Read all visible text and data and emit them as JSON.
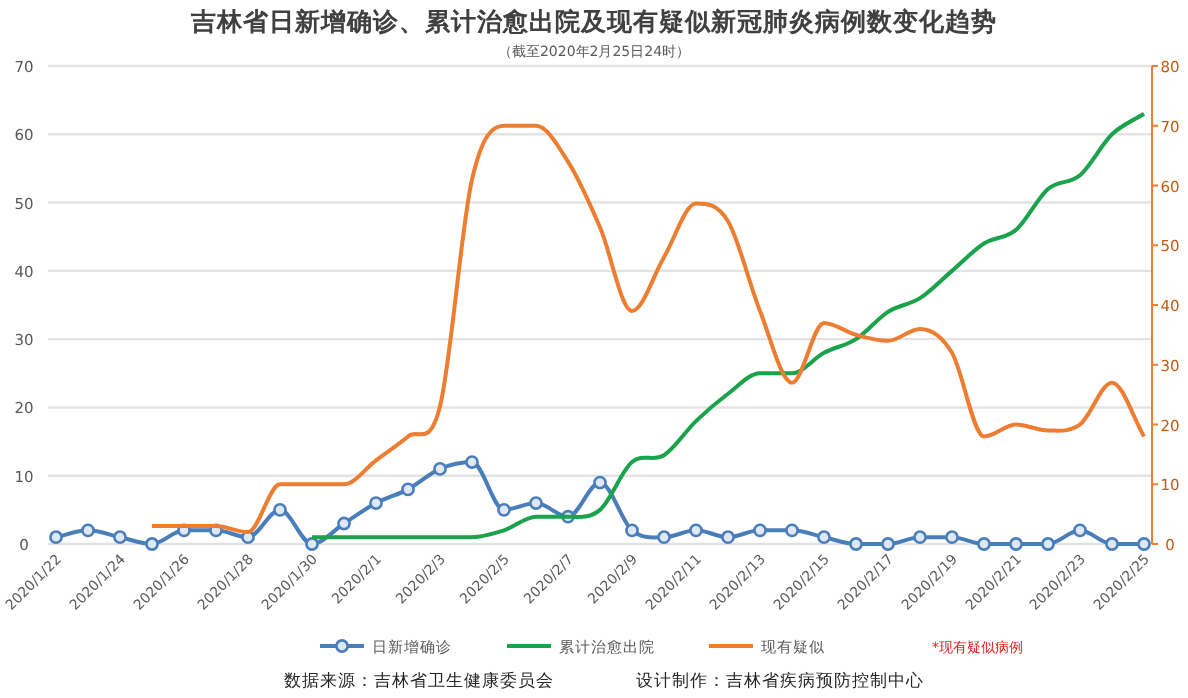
{
  "chart_data": {
    "type": "line",
    "title": "吉林省日新增确诊、累计治愈出院及现有疑似新冠肺炎病例数变化趋势",
    "subtitle": "（截至2020年2月25日24时）",
    "categories": [
      "2020/1/22",
      null,
      "2020/1/24",
      null,
      "2020/1/26",
      null,
      "2020/1/28",
      null,
      "2020/1/30",
      null,
      "2020/2/1",
      null,
      "2020/2/3",
      null,
      "2020/2/5",
      null,
      "2020/2/7",
      null,
      "2020/2/9",
      null,
      "2020/2/11",
      null,
      "2020/2/13",
      null,
      "2020/2/15",
      null,
      "2020/2/17",
      null,
      "2020/2/19",
      null,
      "2020/2/21",
      null,
      "2020/2/23",
      null,
      "2020/2/25"
    ],
    "series": [
      {
        "name": "日新增确诊",
        "color": "#4a7ebb",
        "marker": "circle",
        "values": [
          1,
          2,
          1,
          0,
          2,
          2,
          1,
          5,
          0,
          3,
          6,
          8,
          11,
          12,
          5,
          6,
          4,
          9,
          2,
          1,
          2,
          1,
          2,
          2,
          1,
          0,
          0,
          1,
          1,
          0,
          0,
          0,
          2,
          0,
          0
        ]
      },
      {
        "name": "累计治愈出院",
        "color": "#1aa34a",
        "marker": "none",
        "values": [
          null,
          null,
          null,
          null,
          null,
          null,
          null,
          null,
          1,
          1,
          1,
          1,
          1,
          1,
          2,
          4,
          4,
          5,
          12,
          13,
          18,
          22,
          25,
          25,
          28,
          30,
          34,
          36,
          40,
          44,
          46,
          52,
          54,
          60,
          63
        ]
      },
      {
        "name": "现有疑似",
        "color": "#ed7d31",
        "marker": "none",
        "axis": "y2",
        "values": [
          null,
          null,
          null,
          3,
          3,
          3,
          2,
          10,
          10,
          10,
          14,
          18,
          23,
          61,
          70,
          70,
          64,
          53,
          39,
          48,
          57,
          54,
          39,
          27,
          37,
          35,
          34,
          36,
          32,
          18,
          20,
          19,
          20,
          27,
          18
        ]
      }
    ],
    "ylim": [
      0,
      70
    ],
    "yticks": [
      0,
      10,
      20,
      30,
      40,
      50,
      60,
      70
    ],
    "y2lim": [
      0,
      80
    ],
    "y2ticks": [
      0,
      10,
      20,
      30,
      40,
      50,
      60,
      70,
      80
    ],
    "grid": "y",
    "legend": "bottom",
    "annotations": [
      "*现有疑似病例",
      "数据来源：吉林省卫生健康委员会",
      "设计制作：吉林省疾病预防控制中心"
    ]
  }
}
